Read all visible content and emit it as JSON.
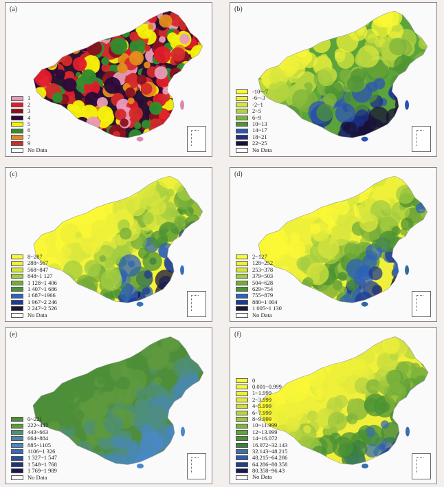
{
  "panels": [
    {
      "id": "a",
      "label": "(a)",
      "colors": {
        "base": "#2a1430",
        "mid": "#b51a2a",
        "accent": "#d98ab0"
      },
      "legend": [
        {
          "label": "1",
          "color": "#e89ab8"
        },
        {
          "label": "2",
          "color": "#e01b2a"
        },
        {
          "label": "3",
          "color": "#8a1020"
        },
        {
          "label": "4",
          "color": "#2a0a3a"
        },
        {
          "label": "5",
          "color": "#f4f20a"
        },
        {
          "label": "6",
          "color": "#2f8e2e"
        },
        {
          "label": "7",
          "color": "#e58a1a"
        },
        {
          "label": "9",
          "color": "#d32a2a"
        },
        {
          "label": "No Data",
          "color": "#ffffff"
        }
      ]
    },
    {
      "id": "b",
      "label": "(b)",
      "colors": {
        "base": "#5aa43b",
        "mid": "#d9e645",
        "accent": "#2a4fb6"
      },
      "legend": [
        {
          "label": "-10~-7",
          "color": "#fbf835"
        },
        {
          "label": "-6~-3",
          "color": "#eef03a"
        },
        {
          "label": "-2~1",
          "color": "#d7e63e"
        },
        {
          "label": "2~5",
          "color": "#b4d440"
        },
        {
          "label": "6~9",
          "color": "#7fb43c"
        },
        {
          "label": "10~13",
          "color": "#4f9434"
        },
        {
          "label": "14~17",
          "color": "#2d55b6"
        },
        {
          "label": "18~21",
          "color": "#1c2f86"
        },
        {
          "label": "22~25",
          "color": "#1a1238"
        },
        {
          "label": "No Data",
          "color": "#ffffff"
        }
      ]
    },
    {
      "id": "c",
      "label": "(c)",
      "colors": {
        "base": "#f4f33a",
        "mid": "#9cc63f",
        "accent": "#3573b8"
      },
      "legend": [
        {
          "label": "8~287",
          "color": "#fbf835"
        },
        {
          "label": "288~567",
          "color": "#eef03a"
        },
        {
          "label": "568~847",
          "color": "#d5e43e"
        },
        {
          "label": "848~1 127",
          "color": "#a3cc40"
        },
        {
          "label": "1 128~1 406",
          "color": "#74ac3a"
        },
        {
          "label": "1 407~1 686",
          "color": "#4a9234"
        },
        {
          "label": "1 687~1966",
          "color": "#2f62b8"
        },
        {
          "label": "1 967~2 246",
          "color": "#1f3a92"
        },
        {
          "label": "2 247~2 526",
          "color": "#1a1640"
        },
        {
          "label": "No Data",
          "color": "#ffffff"
        }
      ]
    },
    {
      "id": "d",
      "label": "(d)",
      "colors": {
        "base": "#eef03a",
        "mid": "#a9cc40",
        "accent": "#2f6a9a"
      },
      "legend": [
        {
          "label": "2~127",
          "color": "#fbf835"
        },
        {
          "label": "128~252",
          "color": "#eef03a"
        },
        {
          "label": "253~378",
          "color": "#d5e43e"
        },
        {
          "label": "379~503",
          "color": "#a3cc40"
        },
        {
          "label": "504~628",
          "color": "#74ac3a"
        },
        {
          "label": "629~754",
          "color": "#4a9234"
        },
        {
          "label": "755~879",
          "color": "#2f62b8"
        },
        {
          "label": "880~1 004",
          "color": "#1f3a92"
        },
        {
          "label": "1 005~1 130",
          "color": "#1a1640"
        },
        {
          "label": "No Data",
          "color": "#ffffff"
        }
      ]
    },
    {
      "id": "e",
      "label": "(e)",
      "colors": {
        "base": "#4e8e3a",
        "mid": "#5f9a3e",
        "accent": "#4a88c8"
      },
      "legend": [
        {
          "label": "0~221",
          "color": "#4e8e3a"
        },
        {
          "label": "222~442",
          "color": "#5f9a3e"
        },
        {
          "label": "443~663",
          "color": "#4f8f7a"
        },
        {
          "label": "664~884",
          "color": "#4a88a8"
        },
        {
          "label": "885~1105",
          "color": "#4a88c8"
        },
        {
          "label": "1106~1 326",
          "color": "#3a6ab8"
        },
        {
          "label": "1 327~1 547",
          "color": "#2a4ea0"
        },
        {
          "label": "1 548~1 768",
          "color": "#1e3480"
        },
        {
          "label": "1 769~1 989",
          "color": "#1a1a50"
        },
        {
          "label": "No Data",
          "color": "#ffffff"
        }
      ]
    },
    {
      "id": "f",
      "label": "(f)",
      "colors": {
        "base": "#f0f03a",
        "mid": "#8fba3e",
        "accent": "#3a6cb0"
      },
      "legend": [
        {
          "label": "0",
          "color": "#fbf835"
        },
        {
          "label": "0.001~0.999",
          "color": "#f5f53a"
        },
        {
          "label": "1~1.999",
          "color": "#eef03a"
        },
        {
          "label": "2~3.999",
          "color": "#e2ea3c"
        },
        {
          "label": "4~5.999",
          "color": "#cfe03e"
        },
        {
          "label": "6~7.999",
          "color": "#b7d440"
        },
        {
          "label": "8~9.999",
          "color": "#9cc63f"
        },
        {
          "label": "10~11.999",
          "color": "#7eb43c"
        },
        {
          "label": "12~13.999",
          "color": "#62a238"
        },
        {
          "label": "14~16.072",
          "color": "#4a9234"
        },
        {
          "label": "16.072~32.143",
          "color": "#3a8040"
        },
        {
          "label": "32.143~48.215",
          "color": "#3a70a8"
        },
        {
          "label": "48.215~64.286",
          "color": "#2f5ab0"
        },
        {
          "label": "64.286~80.358",
          "color": "#22408c"
        },
        {
          "label": "80.358~96.43",
          "color": "#1a1a50"
        },
        {
          "label": "No Data",
          "color": "#ffffff"
        }
      ]
    }
  ]
}
